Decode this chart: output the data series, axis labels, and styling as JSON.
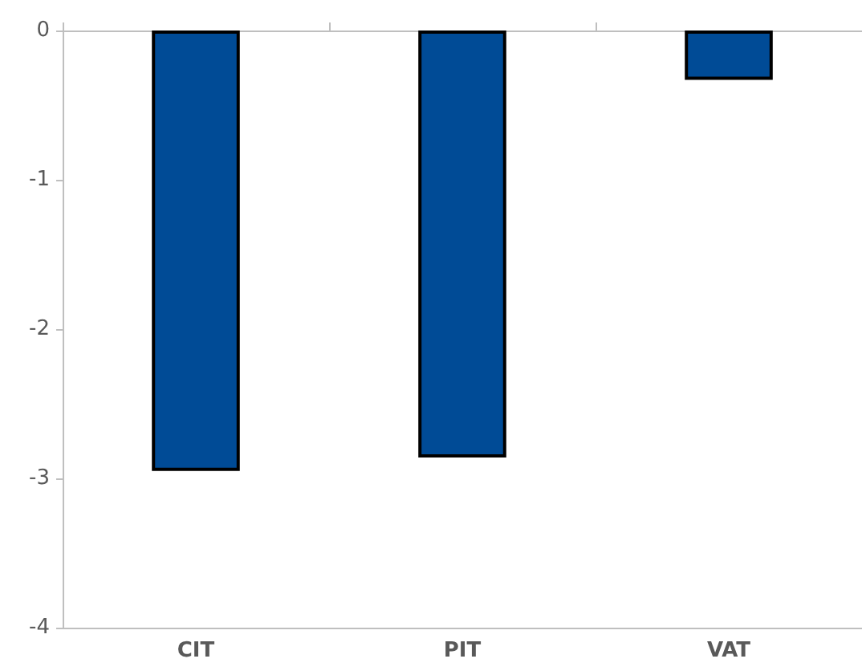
{
  "chart_data": {
    "type": "bar",
    "categories": [
      "CIT",
      "PIT",
      "VAT"
    ],
    "values": [
      -2.95,
      -2.86,
      -0.33
    ],
    "color": "#004b96",
    "ylim": [
      -4,
      0
    ],
    "yticks": [
      -4,
      -3,
      -2,
      -1,
      0
    ],
    "grid": false
  }
}
